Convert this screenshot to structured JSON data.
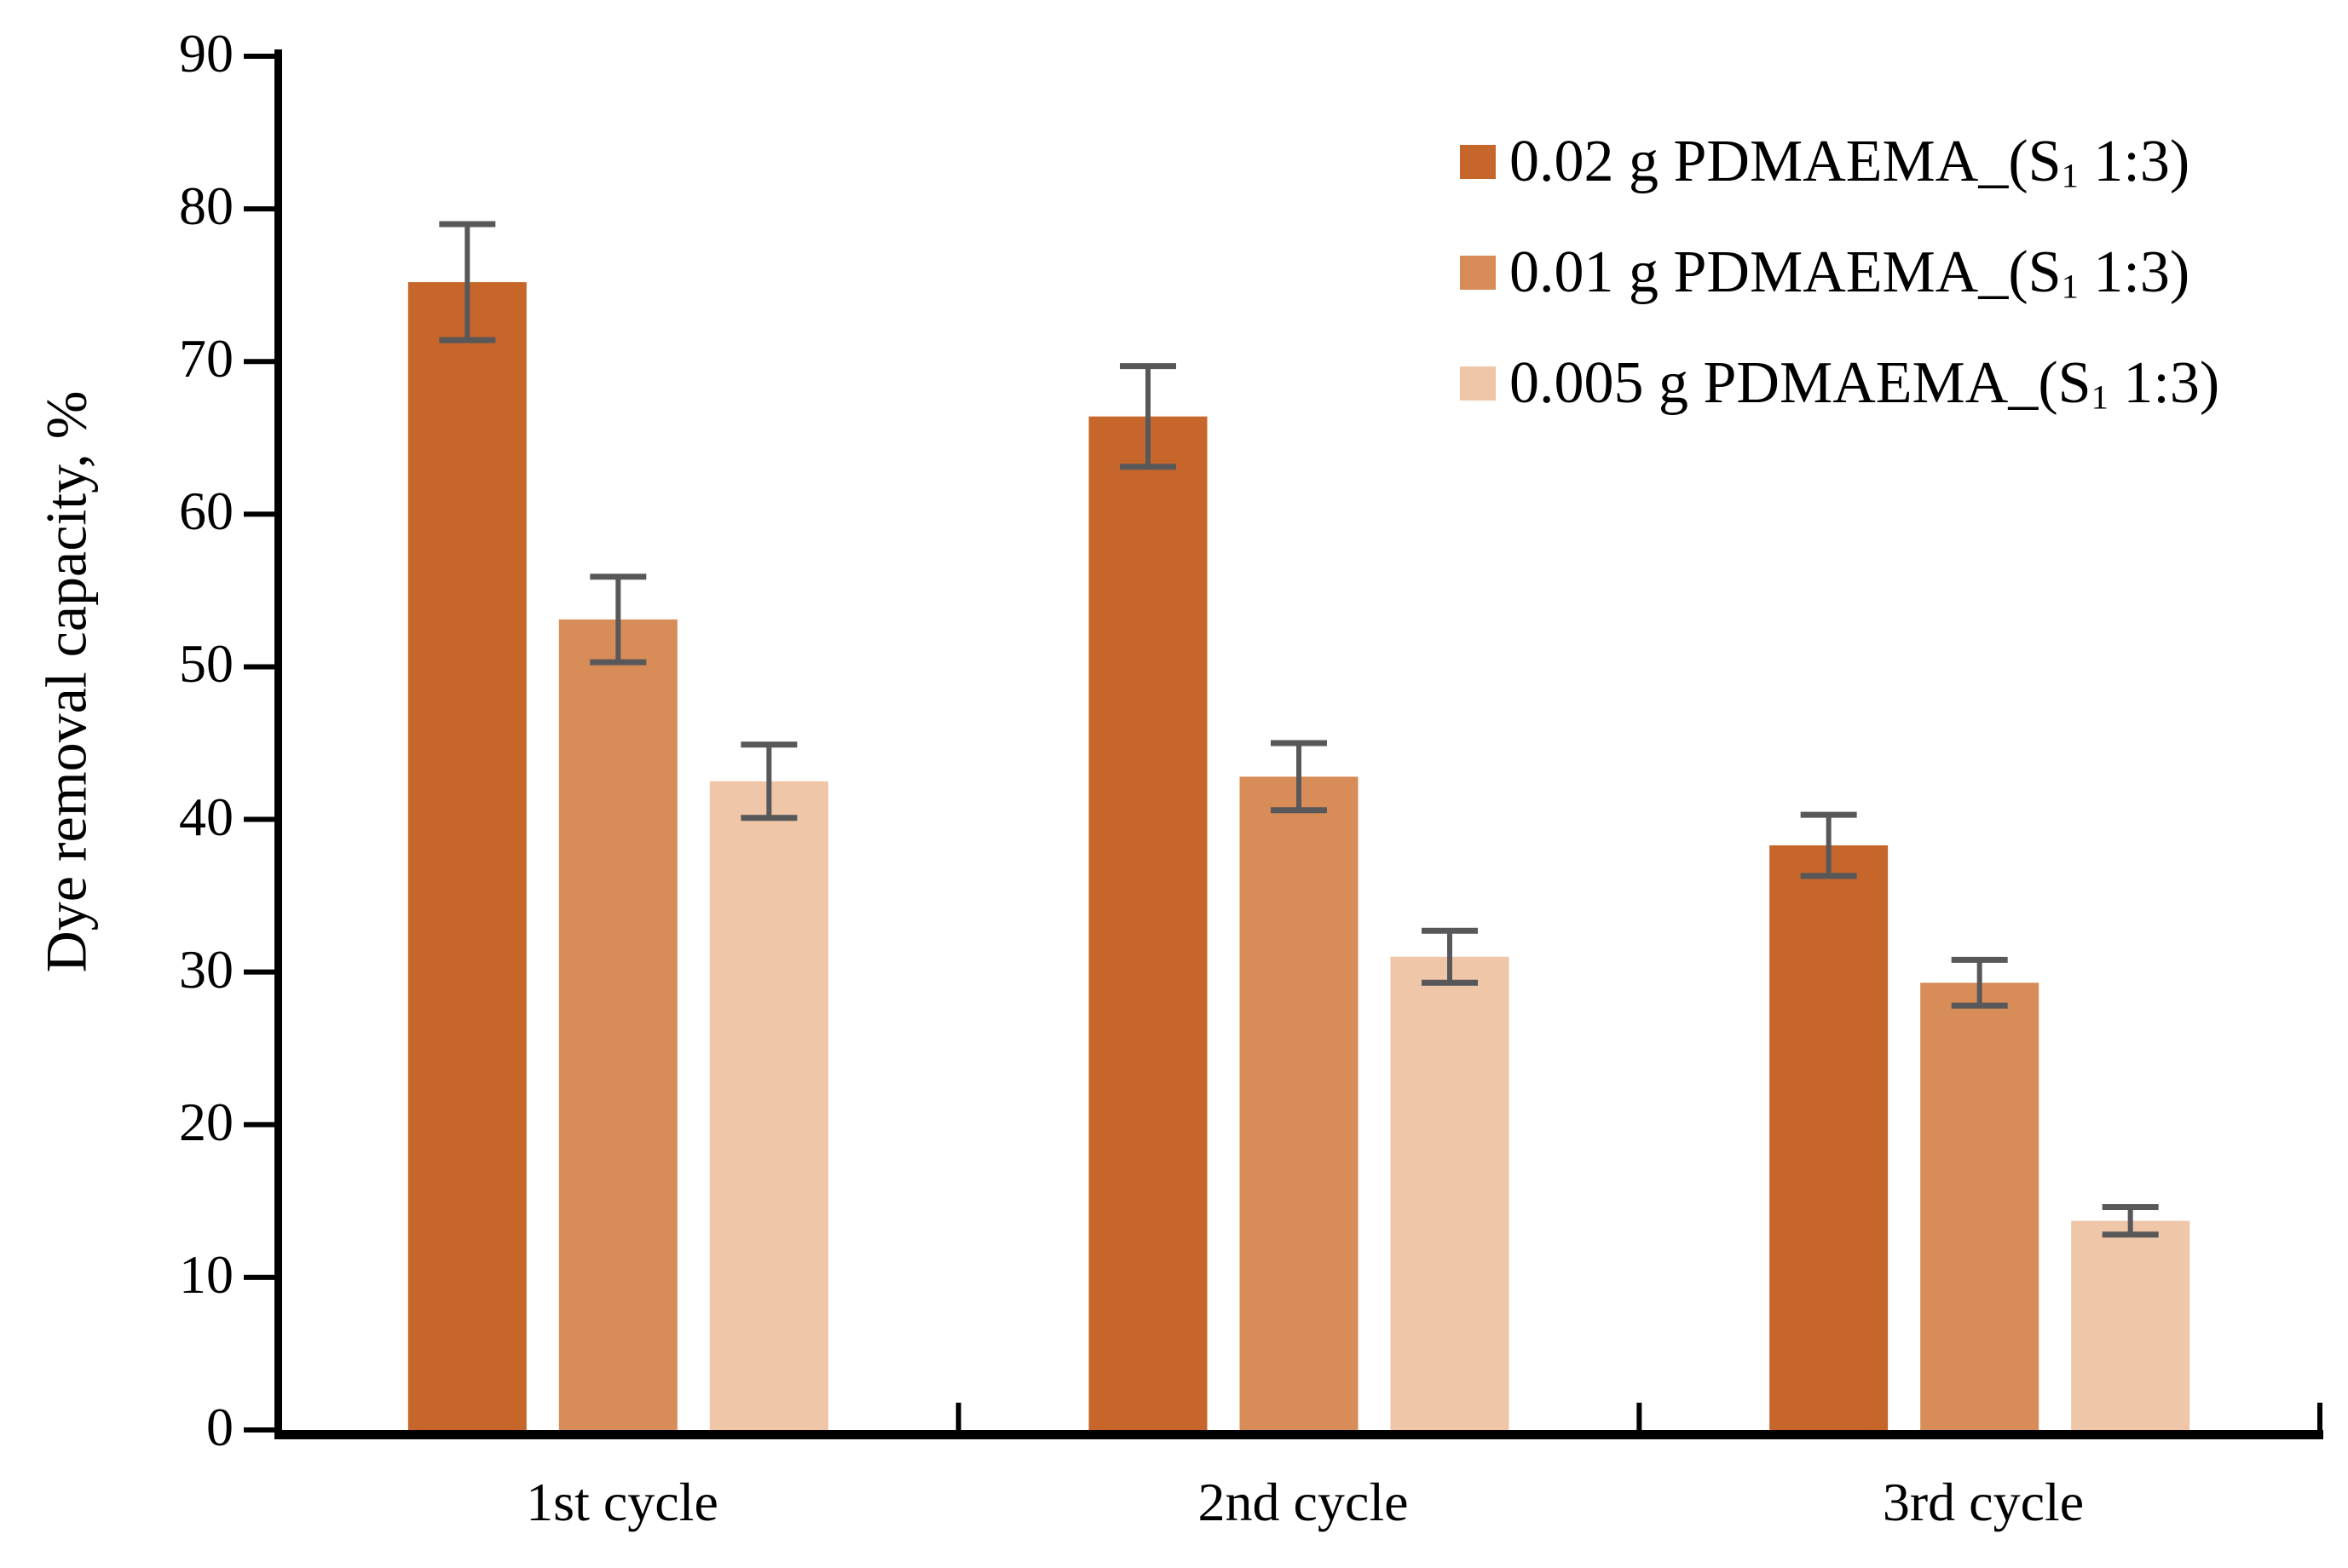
{
  "chart_data": {
    "type": "bar",
    "title": "",
    "xlabel": "",
    "ylabel": "Dye removal capacity, %",
    "ylim": [
      0,
      90
    ],
    "yticks": [
      0,
      10,
      20,
      30,
      40,
      50,
      60,
      70,
      80,
      90
    ],
    "categories": [
      "1st cycle",
      "2nd cycle",
      "3rd cycle"
    ],
    "series": [
      {
        "name": "0.02 g PDMAEMA_(S₁ 1:3)",
        "label_pre": "0.02 g PDMAEMA_(S",
        "label_sub": "1",
        "label_post": " 1:3)",
        "color": "#C7662B",
        "values": [
          75.2,
          66.4,
          38.3
        ],
        "errors": [
          3.8,
          3.3,
          2.0
        ]
      },
      {
        "name": "0.01 g PDMAEMA_(S₁ 1:3)",
        "label_pre": "0.01 g PDMAEMA_(S",
        "label_sub": "1",
        "label_post": " 1:3)",
        "color": "#D88C58",
        "values": [
          53.1,
          42.8,
          29.3
        ],
        "errors": [
          2.8,
          2.2,
          1.5
        ]
      },
      {
        "name": "0.005 g PDMAEMA_(S₁ 1:3)",
        "label_pre": "0.005 g PDMAEMA_(S",
        "label_sub": "1",
        "label_post": " 1:3)",
        "color": "#EFC6A8",
        "values": [
          42.5,
          31.0,
          13.7
        ],
        "errors": [
          2.4,
          1.7,
          0.9
        ]
      }
    ],
    "legend_position": "top-right",
    "grid": false,
    "error_bar_color": "#58585A",
    "axis_color": "#000000"
  }
}
